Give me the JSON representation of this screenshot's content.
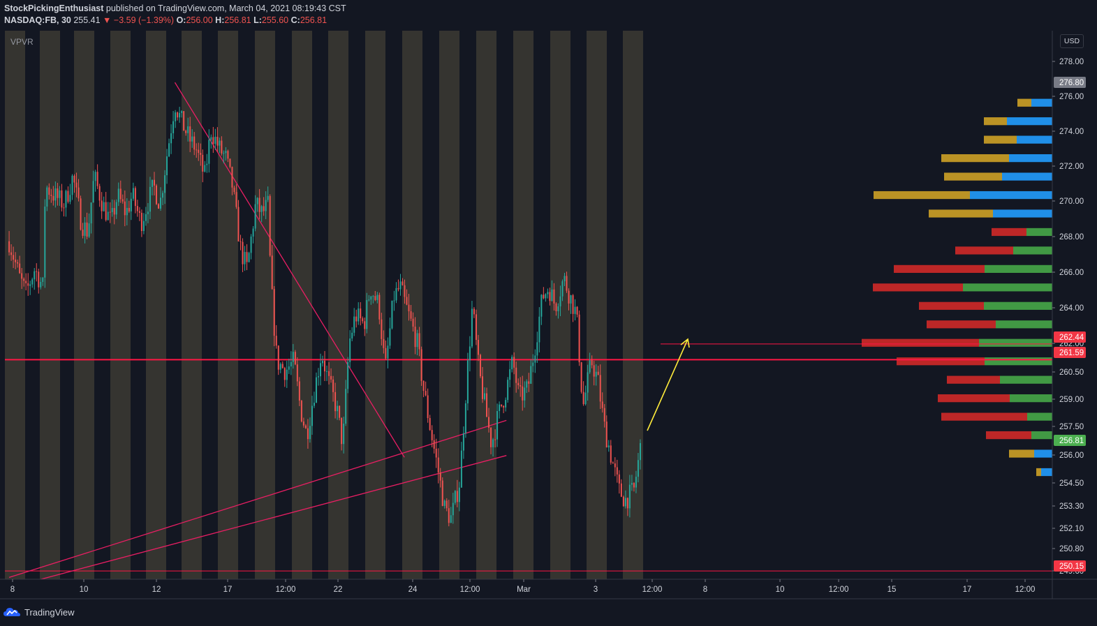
{
  "header": {
    "author": "StockPickingEnthusiast",
    "published": "published on TradingView.com, March 04, 2021 08:19:43 CST",
    "symbol": "NASDAQ:FB, 30",
    "last": "255.41",
    "change": "−3.59 (−1.39%)",
    "o_label": "O:",
    "o_value": "256.00",
    "h_label": "H:",
    "h_value": "256.81",
    "l_label": "L:",
    "l_value": "255.60",
    "c_label": "C:",
    "c_value": "256.81"
  },
  "indicator_label": "VPVR",
  "currency": "USD",
  "footer": {
    "brand": "TradingView"
  },
  "colors": {
    "background": "#131722",
    "session_band": "#3c3a33",
    "up": "#26a69a",
    "down": "#ef5350",
    "trendline": "#e91e63",
    "level_line": "#ff1744",
    "arrow": "#ffeb3b",
    "vp_up": "#2196f3",
    "vp_up_alt": "#c49a26",
    "vp_green": "#43a047",
    "vp_red": "#c62828",
    "badge_red": "#f23645",
    "badge_green": "#4caf50",
    "badge_gray": "#787b86"
  },
  "chart_data": {
    "type": "candlestick",
    "ylim": [
      249.7,
      279.4
    ],
    "y_ticks": [
      "278.00",
      "276.00",
      "274.00",
      "272.00",
      "270.00",
      "268.00",
      "266.00",
      "264.00",
      "262.00",
      "260.50",
      "259.00",
      "257.50",
      "256.00",
      "254.50",
      "253.30",
      "252.10",
      "250.80",
      "249.60"
    ],
    "x_ticks": [
      "8",
      "10",
      "12",
      "17",
      "12:00",
      "22",
      "24",
      "12:00",
      "Mar",
      "3",
      "12:00",
      "8",
      "10",
      "12:00",
      "15",
      "17",
      "12:00"
    ],
    "price_badges": [
      {
        "label": "276.80",
        "value": 276.8,
        "color": "#787b86"
      },
      {
        "label": "262.44",
        "value": 262.44,
        "color": "#f23645"
      },
      {
        "label": "261.59",
        "value": 261.59,
        "color": "#f23645"
      },
      {
        "label": "256.81",
        "value": 256.81,
        "color": "#4caf50"
      },
      {
        "label": "250.15",
        "value": 250.15,
        "color": "#f23645"
      }
    ],
    "horizontal_levels": [
      {
        "value": 261.59,
        "from_x": "full",
        "width": "thick"
      },
      {
        "value": 250.15,
        "from_x": "full",
        "width": "thin"
      },
      {
        "value": 262.44,
        "from_x": "partial",
        "width": "thin"
      }
    ],
    "trendlines": [
      {
        "name": "upper-resistance",
        "from": [
          15.6,
          276.6
        ],
        "to": [
          26.4,
          256.3
        ]
      },
      {
        "name": "lower-support-1",
        "from": [
          7.8,
          249.8
        ],
        "to": [
          31.2,
          258.3
        ]
      },
      {
        "name": "lower-support-2",
        "from": [
          9.3,
          249.7
        ],
        "to": [
          31.2,
          256.4
        ]
      }
    ],
    "candle_path": [
      [
        7.8,
        268.0
      ],
      [
        8.3,
        266.0
      ],
      [
        8.6,
        265.2
      ],
      [
        9.0,
        266.5
      ],
      [
        9.4,
        265.5
      ],
      [
        9.5,
        271.0
      ],
      [
        9.9,
        270.5
      ],
      [
        10.4,
        270.0
      ],
      [
        10.8,
        271.5
      ],
      [
        11.2,
        269.0
      ],
      [
        11.5,
        268.5
      ],
      [
        11.8,
        271.5
      ],
      [
        12.2,
        270.0
      ],
      [
        12.6,
        269.0
      ],
      [
        12.9,
        270.5
      ],
      [
        13.3,
        269.5
      ],
      [
        13.6,
        270.5
      ],
      [
        14.0,
        269.0
      ],
      [
        14.3,
        270.0
      ],
      [
        14.6,
        271.0
      ],
      [
        14.9,
        270.0
      ],
      [
        15.2,
        272.5
      ],
      [
        15.6,
        275.5
      ],
      [
        15.9,
        274.5
      ],
      [
        16.3,
        273.5
      ],
      [
        16.6,
        273.0
      ],
      [
        17.0,
        271.5
      ],
      [
        17.3,
        274.0
      ],
      [
        17.7,
        273.0
      ],
      [
        18.0,
        272.5
      ],
      [
        18.3,
        271.0
      ],
      [
        18.7,
        267.5
      ],
      [
        19.0,
        266.5
      ],
      [
        19.4,
        270.0
      ],
      [
        19.7,
        269.5
      ],
      [
        20.0,
        270.0
      ],
      [
        20.1,
        266.0
      ],
      [
        20.4,
        261.5
      ],
      [
        20.8,
        261.0
      ],
      [
        21.2,
        261.5
      ],
      [
        21.5,
        259.0
      ],
      [
        21.8,
        257.5
      ],
      [
        22.1,
        259.5
      ],
      [
        22.5,
        262.0
      ],
      [
        22.8,
        260.5
      ],
      [
        23.2,
        259.0
      ],
      [
        23.5,
        257.0
      ],
      [
        23.8,
        262.5
      ],
      [
        24.1,
        264.0
      ],
      [
        24.5,
        263.5
      ],
      [
        24.8,
        265.5
      ],
      [
        25.2,
        264.5
      ],
      [
        25.5,
        261.0
      ],
      [
        25.9,
        265.0
      ],
      [
        26.2,
        265.5
      ],
      [
        26.6,
        264.0
      ],
      [
        27.0,
        262.5
      ],
      [
        27.3,
        260.0
      ],
      [
        27.6,
        258.0
      ],
      [
        28.0,
        255.5
      ],
      [
        28.3,
        253.5
      ],
      [
        28.6,
        253.0
      ],
      [
        29.0,
        255.0
      ],
      [
        29.3,
        260.0
      ],
      [
        29.6,
        264.5
      ],
      [
        29.9,
        261.0
      ],
      [
        30.2,
        259.0
      ],
      [
        30.5,
        257.0
      ],
      [
        30.8,
        258.5
      ],
      [
        31.2,
        260.0
      ],
      [
        31.5,
        261.5
      ],
      [
        31.8,
        259.5
      ],
      [
        32.2,
        260.0
      ],
      [
        32.5,
        262.0
      ],
      [
        32.9,
        265.0
      ],
      [
        33.2,
        265.5
      ],
      [
        33.5,
        264.5
      ],
      [
        33.9,
        266.0
      ],
      [
        34.2,
        265.0
      ],
      [
        34.5,
        264.0
      ],
      [
        34.8,
        259.0
      ],
      [
        35.2,
        261.5
      ],
      [
        35.5,
        260.5
      ],
      [
        35.8,
        258.0
      ],
      [
        36.2,
        256.0
      ],
      [
        36.5,
        254.5
      ],
      [
        36.8,
        254.0
      ],
      [
        37.2,
        254.5
      ],
      [
        37.5,
        256.8
      ]
    ],
    "x_range": [
      7.6,
      37.6
    ],
    "volume_profile": [
      {
        "price": 276.5,
        "a": 0.5,
        "b": 0,
        "alt": true
      },
      {
        "price": 275.5,
        "a": 20,
        "b": 30,
        "alt": true
      },
      {
        "price": 274.5,
        "a": 33,
        "b": 65,
        "alt": true
      },
      {
        "price": 273.5,
        "a": 47,
        "b": 51,
        "alt": true
      },
      {
        "price": 272.5,
        "a": 97,
        "b": 62,
        "alt": true
      },
      {
        "price": 271.5,
        "a": 83,
        "b": 72,
        "alt": true
      },
      {
        "price": 270.5,
        "a": 138,
        "b": 118,
        "alt": true
      },
      {
        "price": 269.5,
        "a": 92,
        "b": 85,
        "alt": true
      },
      {
        "price": 268.5,
        "a": 50,
        "b": 37,
        "alt": false
      },
      {
        "price": 267.5,
        "a": 83,
        "b": 56,
        "alt": false
      },
      {
        "price": 266.5,
        "a": 130,
        "b": 97,
        "alt": false
      },
      {
        "price": 265.5,
        "a": 129,
        "b": 128,
        "alt": false
      },
      {
        "price": 264.5,
        "a": 93,
        "b": 98,
        "alt": false
      },
      {
        "price": 263.5,
        "a": 99,
        "b": 81,
        "alt": false
      },
      {
        "price": 262.5,
        "a": 168,
        "b": 105,
        "alt": false
      },
      {
        "price": 261.5,
        "a": 126,
        "b": 97,
        "alt": false
      },
      {
        "price": 260.5,
        "a": 76,
        "b": 75,
        "alt": false
      },
      {
        "price": 259.5,
        "a": 103,
        "b": 61,
        "alt": false
      },
      {
        "price": 258.5,
        "a": 123,
        "b": 36,
        "alt": false
      },
      {
        "price": 257.5,
        "a": 65,
        "b": 30,
        "alt": false
      },
      {
        "price": 256.5,
        "a": 36,
        "b": 26,
        "alt": true
      },
      {
        "price": 255.5,
        "a": 7,
        "b": 16,
        "alt": true
      }
    ]
  }
}
